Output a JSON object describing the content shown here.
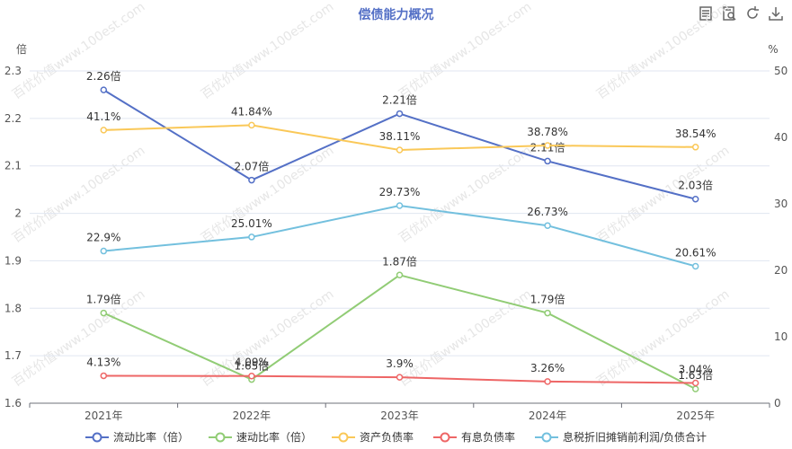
{
  "chart_data": {
    "type": "line",
    "title": "偿债能力概况",
    "categories": [
      "2021年",
      "2022年",
      "2023年",
      "2024年",
      "2025年"
    ],
    "y_left": {
      "unit": "倍",
      "min": 1.6,
      "max": 2.3,
      "ticks": [
        "1.6",
        "1.7",
        "1.8",
        "1.9",
        "2",
        "2.1",
        "2.2",
        "2.3"
      ]
    },
    "y_right": {
      "unit": "%",
      "min": 0,
      "max": 50,
      "ticks": [
        "0",
        "10",
        "20",
        "30",
        "40",
        "50"
      ]
    },
    "series": [
      {
        "name": "流动比率（倍）",
        "axis": "left",
        "color": "#5470c6",
        "values": [
          2.26,
          2.07,
          2.21,
          2.11,
          2.03
        ],
        "labels": [
          "2.26倍",
          "2.07倍",
          "2.21倍",
          "2.11倍",
          "2.03倍"
        ]
      },
      {
        "name": "速动比率（倍）",
        "axis": "left",
        "color": "#91cc75",
        "values": [
          1.79,
          1.65,
          1.87,
          1.79,
          1.63
        ],
        "labels": [
          "1.79倍",
          "1.65倍",
          "1.87倍",
          "1.79倍",
          "1.63倍"
        ]
      },
      {
        "name": "资产负债率",
        "axis": "right",
        "color": "#fac858",
        "values": [
          41.1,
          41.84,
          38.11,
          38.78,
          38.54
        ],
        "labels": [
          "41.1%",
          "41.84%",
          "38.11%",
          "38.78%",
          "38.54%"
        ]
      },
      {
        "name": "有息负债率",
        "axis": "right",
        "color": "#ee6666",
        "values": [
          4.13,
          4.09,
          3.9,
          3.26,
          3.04
        ],
        "labels": [
          "4.13%",
          "4.09%",
          "3.9%",
          "3.26%",
          "3.04%"
        ]
      },
      {
        "name": "息税折旧摊销前利润/负债合计",
        "axis": "right",
        "color": "#73c0de",
        "values": [
          22.9,
          25.01,
          29.73,
          26.73,
          20.61
        ],
        "labels": [
          "22.9%",
          "25.01%",
          "29.73%",
          "26.73%",
          "20.61%"
        ]
      }
    ],
    "grid": "horizontal",
    "legend_position": "bottom"
  },
  "watermark": "百优价值www.100est.com",
  "toolbar": {
    "icons": [
      "data-view-icon",
      "report-icon",
      "refresh-icon",
      "download-icon"
    ]
  }
}
